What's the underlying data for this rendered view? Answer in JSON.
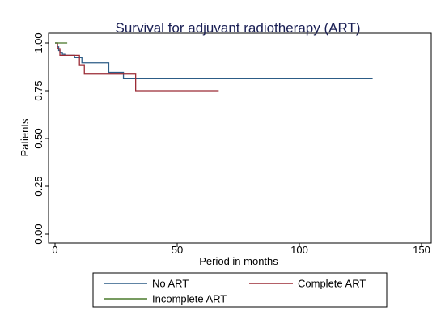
{
  "chart_data": {
    "type": "line",
    "title": "Survival for adjuvant radiotherapy (ART)",
    "xlabel": "Period in months",
    "ylabel": "Patients",
    "xlim": [
      0,
      150
    ],
    "ylim": [
      0,
      1
    ],
    "xticks": [
      0,
      50,
      100,
      150
    ],
    "xtick_labels": [
      "0",
      "50",
      "100",
      "150"
    ],
    "yticks": [
      0,
      0.25,
      0.5,
      0.75,
      1
    ],
    "ytick_labels": [
      "0.00",
      "0.25",
      "0.50",
      "0.75",
      "1.00"
    ],
    "grid": false,
    "legend_position": "bottom",
    "series": [
      {
        "name": "No ART",
        "color": "#2c5c86",
        "step": true,
        "x": [
          0,
          1,
          1.5,
          2,
          3,
          4,
          8,
          11,
          22,
          28,
          130
        ],
        "y": [
          1.0,
          0.98,
          0.96,
          0.95,
          0.94,
          0.935,
          0.925,
          0.895,
          0.845,
          0.815,
          0.815
        ]
      },
      {
        "name": "Complete ART",
        "color": "#9b2b35",
        "step": true,
        "x": [
          0,
          1,
          2,
          10,
          12,
          28,
          33,
          67
        ],
        "y": [
          1.0,
          0.97,
          0.935,
          0.885,
          0.84,
          0.84,
          0.75,
          0.75
        ]
      },
      {
        "name": "Incomplete ART",
        "color": "#4a7a2c",
        "step": true,
        "x": [
          0,
          5
        ],
        "y": [
          1.0,
          1.0
        ]
      }
    ]
  }
}
